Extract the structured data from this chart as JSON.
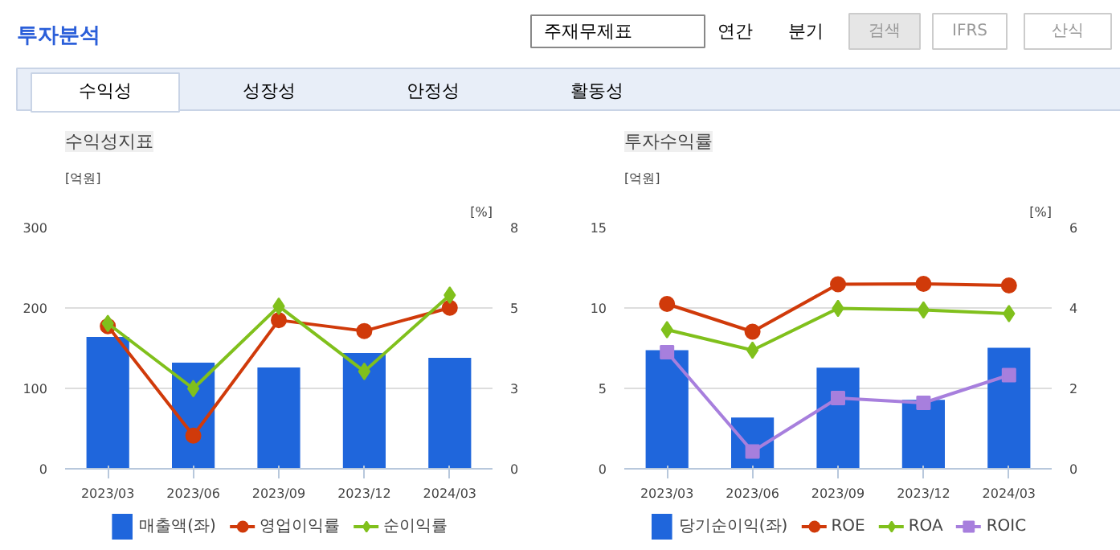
{
  "chart_data": [
    {
      "type": "other",
      "title": "투자분석",
      "annotations": [
        "주재무제표",
        "연간",
        "분기",
        "검색",
        "IFRS",
        "산식",
        "수익성",
        "성장성",
        "안정성",
        "활동성"
      ]
    },
    {
      "type": "bar",
      "title": "수익성지표",
      "ylabel": "[억원]",
      "y2label": "[%]",
      "categories": [
        "2023/03",
        "2023/06",
        "2023/09",
        "2023/12",
        "2024/03"
      ],
      "series": [
        {
          "name": "매출액(좌)",
          "color": "#1f66dc",
          "values": [
            164,
            132,
            126,
            144,
            138
          ]
        },
        {
          "name": "영업이익률",
          "type": "line",
          "axis": "y2",
          "marker": "circle",
          "color": "#d03a0a",
          "values": [
            4.73,
            1.1,
            4.93,
            4.57,
            5.34
          ]
        },
        {
          "name": "순이익률",
          "type": "line",
          "axis": "y2",
          "marker": "diamond",
          "color": "#80c01c",
          "values": [
            4.82,
            2.66,
            5.39,
            3.23,
            5.76
          ]
        }
      ],
      "ylim": [
        0,
        300
      ],
      "yticks": [
        0,
        100,
        200,
        300
      ],
      "y2lim": [
        0,
        8
      ],
      "y2ticks": [
        0,
        {
          "value": 2.667,
          "label": "3"
        },
        {
          "value": 5.333,
          "label": "5"
        },
        8
      ],
      "grid": "y",
      "legend": "bottom"
    },
    {
      "type": "bar",
      "title": "투자수익률",
      "ylabel": "[억원]",
      "y2label": "[%]",
      "categories": [
        "2023/03",
        "2023/06",
        "2023/09",
        "2023/12",
        "2024/03"
      ],
      "series": [
        {
          "name": "당기순이익(좌)",
          "color": "#1f66dc",
          "values": [
            7.38,
            3.19,
            6.29,
            4.29,
            7.52
          ]
        },
        {
          "name": "ROE",
          "type": "line",
          "axis": "y2",
          "marker": "circle",
          "color": "#d03a0a",
          "values": [
            4.1,
            3.41,
            4.59,
            4.6,
            4.56
          ]
        },
        {
          "name": "ROA",
          "type": "line",
          "axis": "y2",
          "marker": "diamond",
          "color": "#80c01c",
          "values": [
            3.46,
            2.95,
            3.99,
            3.95,
            3.86
          ]
        },
        {
          "name": "ROIC",
          "type": "line",
          "axis": "y2",
          "marker": "square",
          "color": "#a77fdd",
          "values": [
            2.9,
            0.43,
            1.76,
            1.64,
            2.33
          ]
        }
      ],
      "ylim": [
        0,
        15
      ],
      "yticks": [
        0,
        5,
        10,
        15
      ],
      "y2lim": [
        0,
        6
      ],
      "y2ticks": [
        0,
        2,
        4,
        6
      ],
      "grid": "y",
      "legend": "bottom"
    }
  ]
}
